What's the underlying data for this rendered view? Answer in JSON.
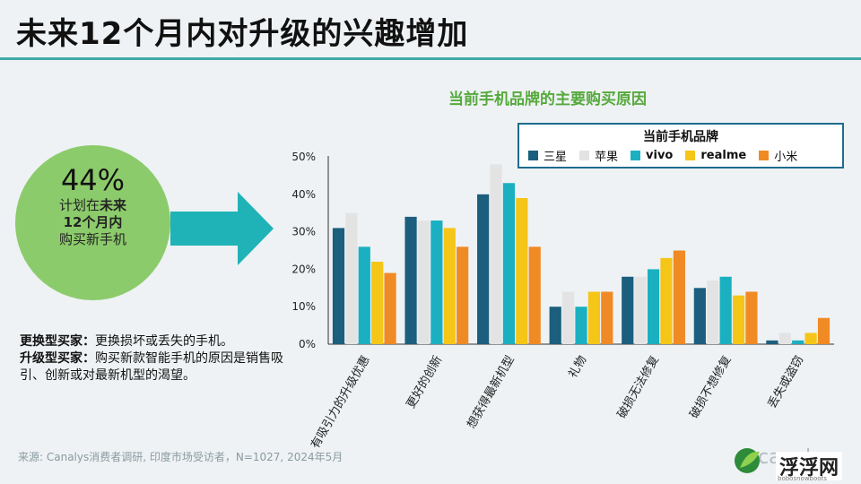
{
  "header": {
    "title": "未来12个月内对升级的兴趣增加"
  },
  "highlight": {
    "percent": "44%",
    "line1_a": "计划在",
    "line1_b": "未来",
    "line2": "12个月内",
    "line3": "购买新手机"
  },
  "notes": {
    "n1_label": "更换型买家：",
    "n1_text": "更换损坏或丢失的手机。",
    "n2_label": "升级型买家：",
    "n2_text": "购买新款智能手机的原因是销售吸引、创新或对最新机型的渴望。"
  },
  "source": "来源: Canalys消费者调研, 印度市场受访者，N=1027, 2024年5月",
  "watermark": {
    "brand": "canalys",
    "site": "bobosnowboots",
    "zh": "浮浮网"
  },
  "colors": {
    "samsung": "#1b5e7e",
    "apple": "#e3e3e3",
    "vivo": "#1ab0c1",
    "realme": "#f5c518",
    "xiaomi": "#f08a24",
    "arrow": "#1fb3b8",
    "circle": "#8ccb6b"
  },
  "chart_data": {
    "type": "bar",
    "title": "当前手机品牌的主要购买原因",
    "legend_title": "当前手机品牌",
    "legend_position": "top-right",
    "categories": [
      "有吸引力的升级优惠",
      "更好的创新",
      "想获得最新机型",
      "礼物",
      "破损无法修复",
      "破损不想修复",
      "丢失或盗窃"
    ],
    "series": [
      {
        "name": "三星",
        "color": "#1b5e7e",
        "values": [
          31,
          34,
          40,
          10,
          18,
          15,
          1
        ]
      },
      {
        "name": "苹果",
        "color": "#e3e3e3",
        "values": [
          35,
          33,
          48,
          14,
          18,
          17,
          3
        ]
      },
      {
        "name": "vivo",
        "color": "#1ab0c1",
        "values": [
          26,
          33,
          43,
          10,
          20,
          18,
          1
        ]
      },
      {
        "name": "realme",
        "color": "#f5c518",
        "values": [
          22,
          31,
          39,
          14,
          23,
          13,
          3
        ]
      },
      {
        "name": "小米",
        "color": "#f08a24",
        "values": [
          19,
          26,
          26,
          14,
          25,
          14,
          7
        ]
      }
    ],
    "yticks": [
      "0%",
      "10%",
      "20%",
      "30%",
      "40%",
      "50%"
    ],
    "ylim": [
      0,
      50
    ],
    "grid": false
  }
}
